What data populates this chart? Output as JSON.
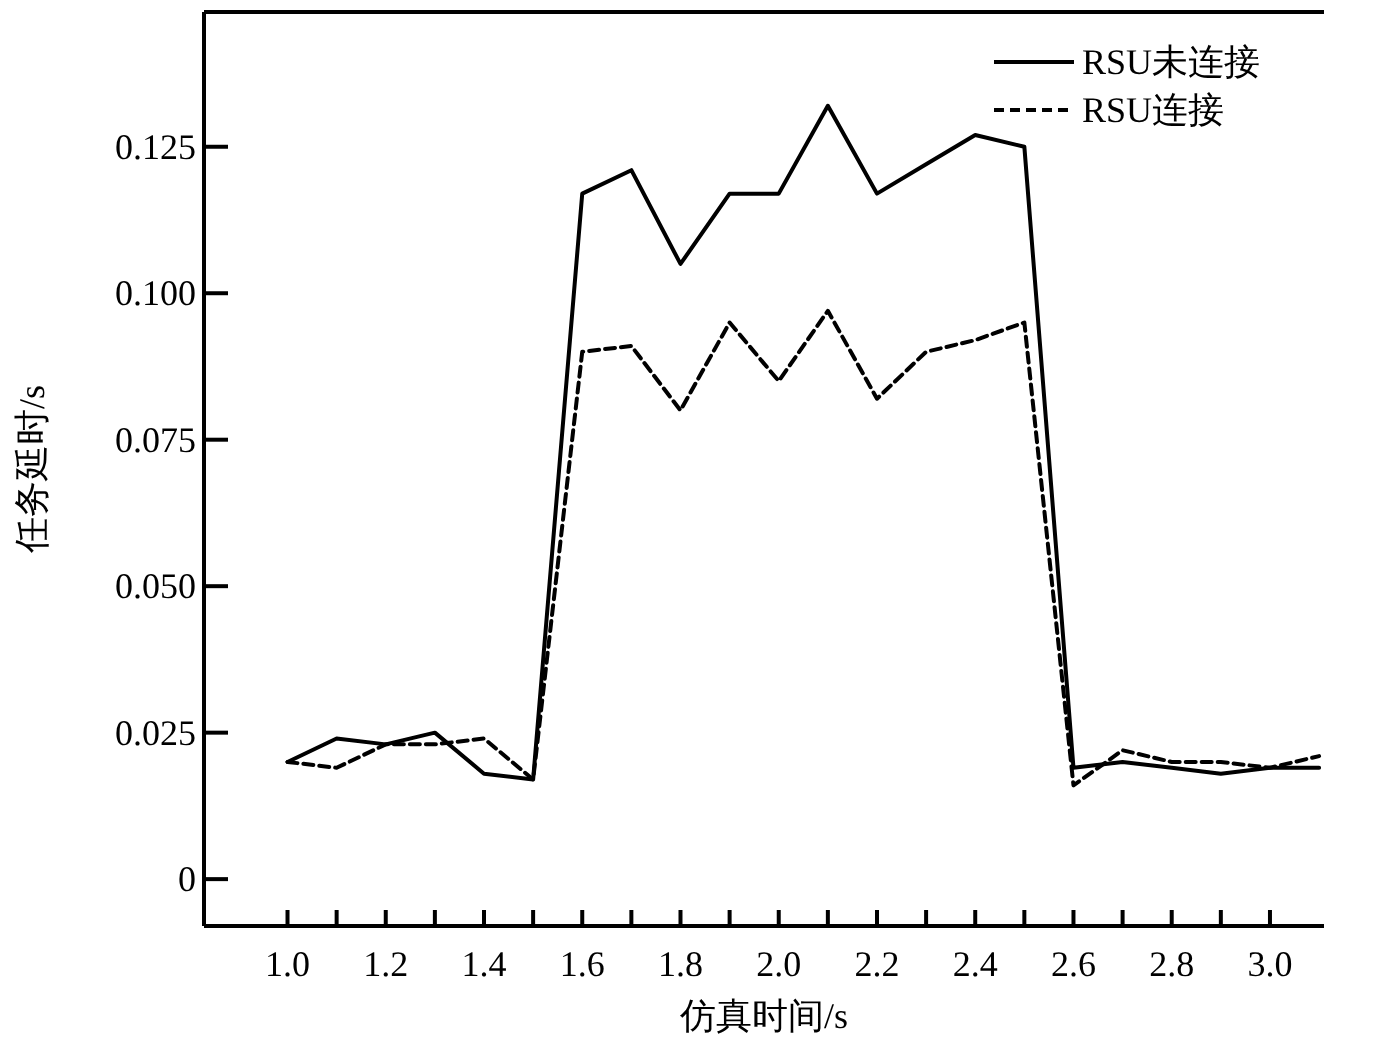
{
  "chart_data": {
    "type": "line",
    "xlabel": "仿真时间/s",
    "ylabel": "任务延时/s",
    "x": [
      1.0,
      1.1,
      1.2,
      1.3,
      1.4,
      1.5,
      1.6,
      1.7,
      1.8,
      1.9,
      2.0,
      2.1,
      2.2,
      2.3,
      2.4,
      2.5,
      2.6,
      2.7,
      2.8,
      2.9,
      3.0,
      3.1
    ],
    "series": [
      {
        "name": "RSU未连接",
        "color": "#000000",
        "line_style": "solid",
        "values": [
          0.02,
          0.024,
          0.023,
          0.025,
          0.018,
          0.017,
          0.117,
          0.121,
          0.105,
          0.117,
          0.117,
          0.132,
          0.117,
          0.122,
          0.127,
          0.125,
          0.019,
          0.02,
          0.019,
          0.018,
          0.019,
          0.019
        ]
      },
      {
        "name": "RSU连接",
        "color": "#000000",
        "line_style": "dashed",
        "values": [
          0.02,
          0.019,
          0.023,
          0.023,
          0.024,
          0.017,
          0.09,
          0.091,
          0.08,
          0.095,
          0.085,
          0.097,
          0.082,
          0.09,
          0.092,
          0.095,
          0.016,
          0.022,
          0.02,
          0.02,
          0.019,
          0.021
        ]
      }
    ],
    "xlim": [
      0.83,
      3.11
    ],
    "ylim": [
      -0.008,
      0.148
    ],
    "xticks": [
      {
        "value": 1.0,
        "label": "1.0"
      },
      {
        "value": 1.1,
        "label": null
      },
      {
        "value": 1.2,
        "label": "1.2"
      },
      {
        "value": 1.3,
        "label": null
      },
      {
        "value": 1.4,
        "label": "1.4"
      },
      {
        "value": 1.5,
        "label": null
      },
      {
        "value": 1.6,
        "label": "1.6"
      },
      {
        "value": 1.7,
        "label": null
      },
      {
        "value": 1.8,
        "label": "1.8"
      },
      {
        "value": 1.9,
        "label": null
      },
      {
        "value": 2.0,
        "label": "2.0"
      },
      {
        "value": 2.1,
        "label": null
      },
      {
        "value": 2.2,
        "label": "2.2"
      },
      {
        "value": 2.3,
        "label": null
      },
      {
        "value": 2.4,
        "label": "2.4"
      },
      {
        "value": 2.5,
        "label": null
      },
      {
        "value": 2.6,
        "label": "2.6"
      },
      {
        "value": 2.7,
        "label": null
      },
      {
        "value": 2.8,
        "label": "2.8"
      },
      {
        "value": 2.9,
        "label": null
      },
      {
        "value": 3.0,
        "label": "3.0"
      }
    ],
    "yticks": [
      0,
      {
        "value": 0.025,
        "label": "0.025"
      },
      {
        "value": 0.05,
        "label": "0.050"
      },
      {
        "value": 0.075,
        "label": "0.075"
      },
      {
        "value": 0.1,
        "label": "0.100"
      },
      {
        "value": 0.125,
        "label": "0.125"
      }
    ],
    "legend": "top right",
    "grid": false,
    "marker": "none"
  }
}
